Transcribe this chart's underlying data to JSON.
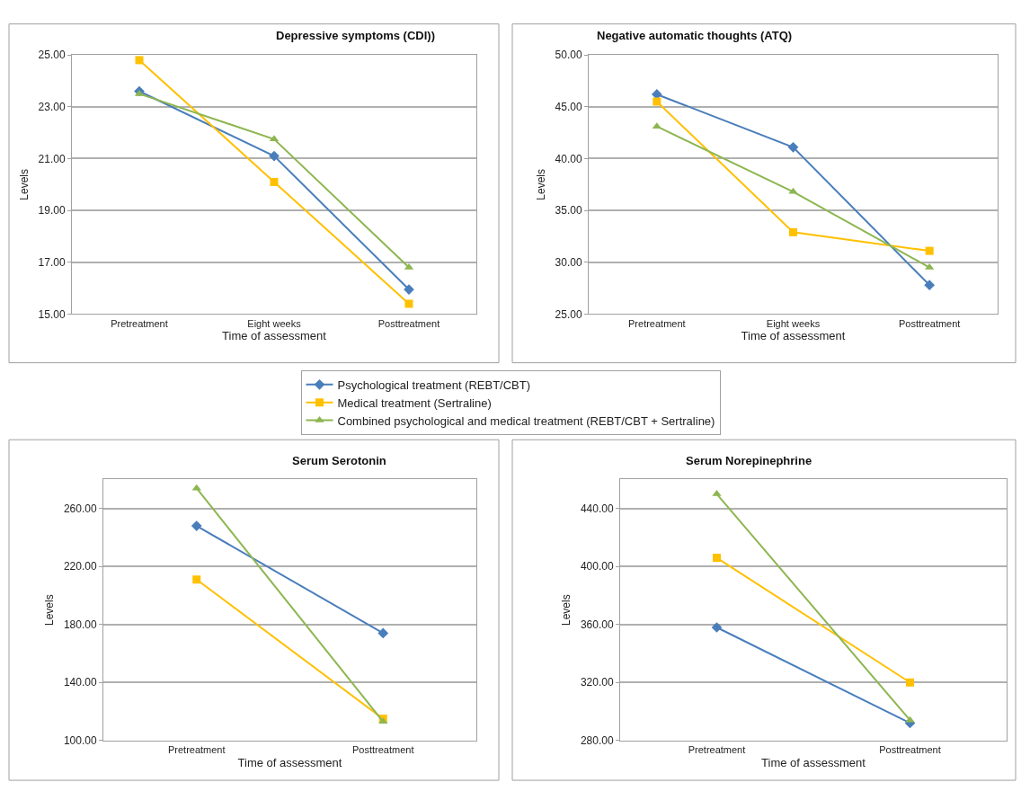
{
  "chart_data": [
    {
      "type": "line",
      "title": "Depressive symptoms (CDI))",
      "xlabel": "Time of assessment",
      "ylabel": "Levels",
      "categories": [
        "Pretreatment",
        "Eight weeks",
        "Posttreatment"
      ],
      "ylim": [
        15,
        25
      ],
      "yticks": [
        {
          "value": 15,
          "label": "15.00"
        },
        {
          "value": 17,
          "label": "17.00"
        },
        {
          "value": 19,
          "label": "19.00"
        },
        {
          "value": 21,
          "label": "21.00"
        },
        {
          "value": 23,
          "label": "23.00"
        },
        {
          "value": 25,
          "label": "25.00"
        }
      ],
      "grid": "y",
      "legend": "center",
      "series": [
        {
          "name": "Psychological treatment (REBT/CBT)",
          "color": "#4a7ebb",
          "marker": "diamond",
          "values": [
            23.6,
            21.1,
            15.95
          ]
        },
        {
          "name": "Medical treatment (Sertraline)",
          "color": "#ffc000",
          "marker": "square",
          "values": [
            24.8,
            20.1,
            15.4
          ]
        },
        {
          "name": "Combined psychological and medical treatment (REBT/CBT + Sertraline)",
          "color": "#8db651",
          "marker": "triangle",
          "values": [
            23.5,
            21.75,
            16.8
          ]
        }
      ]
    },
    {
      "type": "line",
      "title": "Negative automatic thoughts (ATQ)",
      "xlabel": "Time of assessment",
      "ylabel": "Levels",
      "categories": [
        "Pretreatment",
        "Eight weeks",
        "Posttreatment"
      ],
      "ylim": [
        25,
        50
      ],
      "yticks": [
        {
          "value": 25,
          "label": "25.00"
        },
        {
          "value": 30,
          "label": "30.00"
        },
        {
          "value": 35,
          "label": "35.00"
        },
        {
          "value": 40,
          "label": "40.00"
        },
        {
          "value": 45,
          "label": "45.00"
        },
        {
          "value": 50,
          "label": "50.00"
        }
      ],
      "grid": "y",
      "series": [
        {
          "color": "#4a7ebb",
          "marker": "diamond",
          "values": [
            46.2,
            41.1,
            27.8
          ]
        },
        {
          "color": "#ffc000",
          "marker": "square",
          "values": [
            45.5,
            32.9,
            31.1
          ]
        },
        {
          "color": "#8db651",
          "marker": "triangle",
          "values": [
            43.1,
            36.8,
            29.5
          ]
        }
      ]
    },
    {
      "type": "line",
      "title": "Serum Serotonin",
      "xlabel": "Time of assessment",
      "ylabel": "Levels",
      "categories": [
        "Pretreatment",
        "Posttreatment"
      ],
      "ylim": [
        100,
        280
      ],
      "yticks": [
        {
          "value": 100,
          "label": "100.00"
        },
        {
          "value": 140,
          "label": "140.00"
        },
        {
          "value": 180,
          "label": "180.00"
        },
        {
          "value": 220,
          "label": "220.00"
        },
        {
          "value": 260,
          "label": "260.00"
        }
      ],
      "grid": "y",
      "series": [
        {
          "color": "#4a7ebb",
          "marker": "diamond",
          "values": [
            248,
            174
          ]
        },
        {
          "color": "#ffc000",
          "marker": "square",
          "values": [
            211,
            115
          ]
        },
        {
          "color": "#8db651",
          "marker": "triangle",
          "values": [
            274,
            113
          ]
        }
      ]
    },
    {
      "type": "line",
      "title": "Serum Norepinephrine",
      "xlabel": "Time of assessment",
      "ylabel": "Levels",
      "categories": [
        "Pretreatment",
        "Posttreatment"
      ],
      "ylim": [
        280,
        460
      ],
      "yticks": [
        {
          "value": 280,
          "label": "280.00"
        },
        {
          "value": 320,
          "label": "320.00"
        },
        {
          "value": 360,
          "label": "360.00"
        },
        {
          "value": 400,
          "label": "400.00"
        },
        {
          "value": 440,
          "label": "440.00"
        }
      ],
      "grid": "y",
      "series": [
        {
          "color": "#4a7ebb",
          "marker": "diamond",
          "values": [
            358,
            292
          ]
        },
        {
          "color": "#ffc000",
          "marker": "square",
          "values": [
            406,
            320
          ]
        },
        {
          "color": "#8db651",
          "marker": "triangle",
          "values": [
            450,
            294
          ]
        }
      ]
    }
  ]
}
